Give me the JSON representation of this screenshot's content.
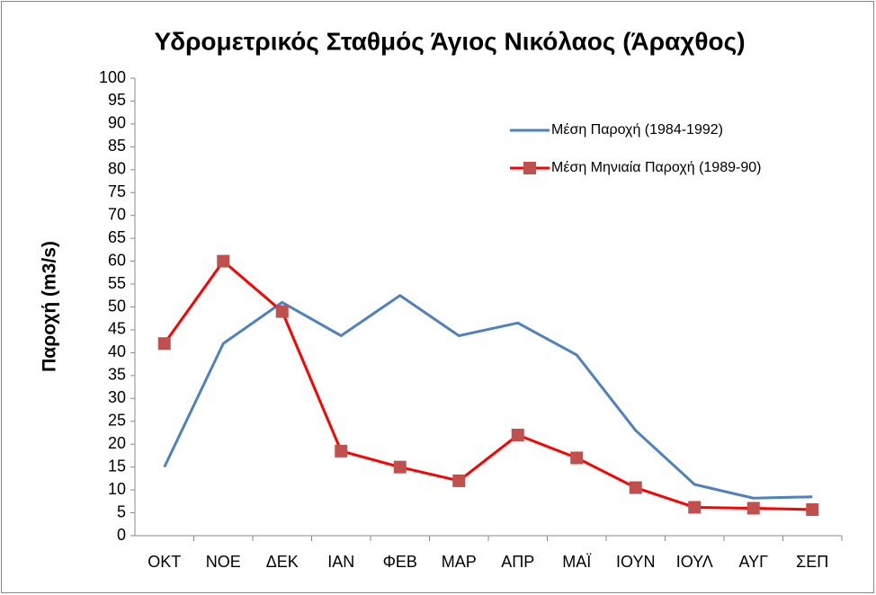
{
  "chart_data": {
    "type": "line",
    "title": "Υδρομετρικός Σταθμός Άγιος Νικόλαος (Άραχθος)",
    "y_label": "Παροχή (m3/s)",
    "categories": [
      "ΟΚΤ",
      "ΝΟΕ",
      "ΔΕΚ",
      "ΙΑΝ",
      "ΦΕΒ",
      "ΜΑΡ",
      "ΑΠΡ",
      "ΜΑΪ",
      "ΙΟΥΝ",
      "ΙΟΥΛ",
      "ΑΥΓ",
      "ΣΕΠ"
    ],
    "series": [
      {
        "name": "Μέση Παροχή (1984-1992)",
        "color": "#4f81bd",
        "marker": "none",
        "values": [
          15,
          42,
          51,
          43.7,
          52.5,
          43.7,
          46.5,
          39.5,
          23,
          11.2,
          8.2,
          8.5
        ]
      },
      {
        "name": "Μέση Μηνιαία Παροχή (1989-90)",
        "color": "#ff0000",
        "marker": "square",
        "marker_color": "#c0504d",
        "values": [
          42,
          60,
          49,
          18.5,
          15,
          12,
          22,
          17,
          10.5,
          6.2,
          6,
          5.7
        ]
      }
    ],
    "ylim": [
      0,
      100
    ],
    "yticks": [
      0,
      5,
      10,
      15,
      20,
      25,
      30,
      35,
      40,
      45,
      50,
      55,
      60,
      65,
      70,
      75,
      80,
      85,
      90,
      95,
      100
    ],
    "grid": false,
    "legend_position": "upper right"
  }
}
